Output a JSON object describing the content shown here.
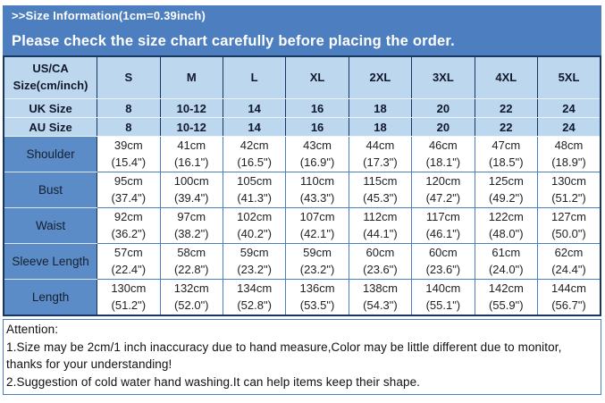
{
  "banner": {
    "title": ">>Size Information(1cm=0.39inch)",
    "subtitle": "Please check the size chart carefully before placing the order.",
    "bg_color": "#4d7ebf",
    "text_color": "#ffffff"
  },
  "size_table": {
    "columns": [
      "US/CA\nSize(cm/inch)",
      "S",
      "M",
      "L",
      "XL",
      "2XL",
      "3XL",
      "4XL",
      "5XL"
    ],
    "rows": [
      {
        "type": "size",
        "label": "UK Size",
        "values": [
          "8",
          "10-12",
          "14",
          "16",
          "18",
          "20",
          "22",
          "24"
        ]
      },
      {
        "type": "size",
        "label": "AU Size",
        "values": [
          "8",
          "10-12",
          "14",
          "16",
          "18",
          "20",
          "22",
          "24"
        ]
      },
      {
        "type": "measure",
        "label": "Shoulder",
        "values": [
          "39cm\n(15.4\")",
          "41cm\n(16.1\")",
          "42cm\n(16.5\")",
          "43cm\n(16.9\")",
          "44cm\n(17.3\")",
          "46cm\n(18.1\")",
          "47cm\n(18.5\")",
          "48cm\n(18.9\")"
        ]
      },
      {
        "type": "measure",
        "label": "Bust",
        "values": [
          "95cm\n(37.4\")",
          "100cm\n(39.4\")",
          "105cm\n(41.3\")",
          "110cm\n(43.3\")",
          "115cm\n(45.3\")",
          "120cm\n(47.2\")",
          "125cm\n(49.2\")",
          "130cm\n(51.2\")"
        ]
      },
      {
        "type": "measure",
        "label": "Waist",
        "values": [
          "92cm\n(36.2\")",
          "97cm\n(38.2\")",
          "102cm\n(40.2\")",
          "107cm\n(42.1\")",
          "112cm\n(44.1\")",
          "117cm\n(46.1\")",
          "122cm\n(48.0\")",
          "127cm\n(50.0\")"
        ]
      },
      {
        "type": "measure",
        "label": "Sleeve Length",
        "values": [
          "57cm\n(22.4\")",
          "58cm\n(22.8\")",
          "59cm\n(23.2\")",
          "59cm\n(23.2\")",
          "60cm\n(23.6\")",
          "60cm\n(23.6\")",
          "61cm\n(24.0\")",
          "62cm\n(24.4\")"
        ]
      },
      {
        "type": "measure",
        "label": "Length",
        "values": [
          "130cm\n(51.2\")",
          "132cm\n(52.0\")",
          "134cm\n(52.8\")",
          "136cm\n(53.5\")",
          "138cm\n(54.3\")",
          "140cm\n(55.1\")",
          "142cm\n(55.9\")",
          "144cm\n(56.7\")"
        ]
      }
    ],
    "colors": {
      "header_bg": "#bdd7ee",
      "label_bg": "#5b8cc8",
      "border_dark": "#17375e",
      "border_blue": "#4a7ebd"
    }
  },
  "attention": {
    "title": "Attention:",
    "notes": [
      "1.Size may be 2cm/1 inch inaccuracy due to hand measure,Color may be little different due to monitor, thanks for your understanding!",
      "2.Suggestion of cold water hand washing.It can help items keep their shape."
    ]
  }
}
